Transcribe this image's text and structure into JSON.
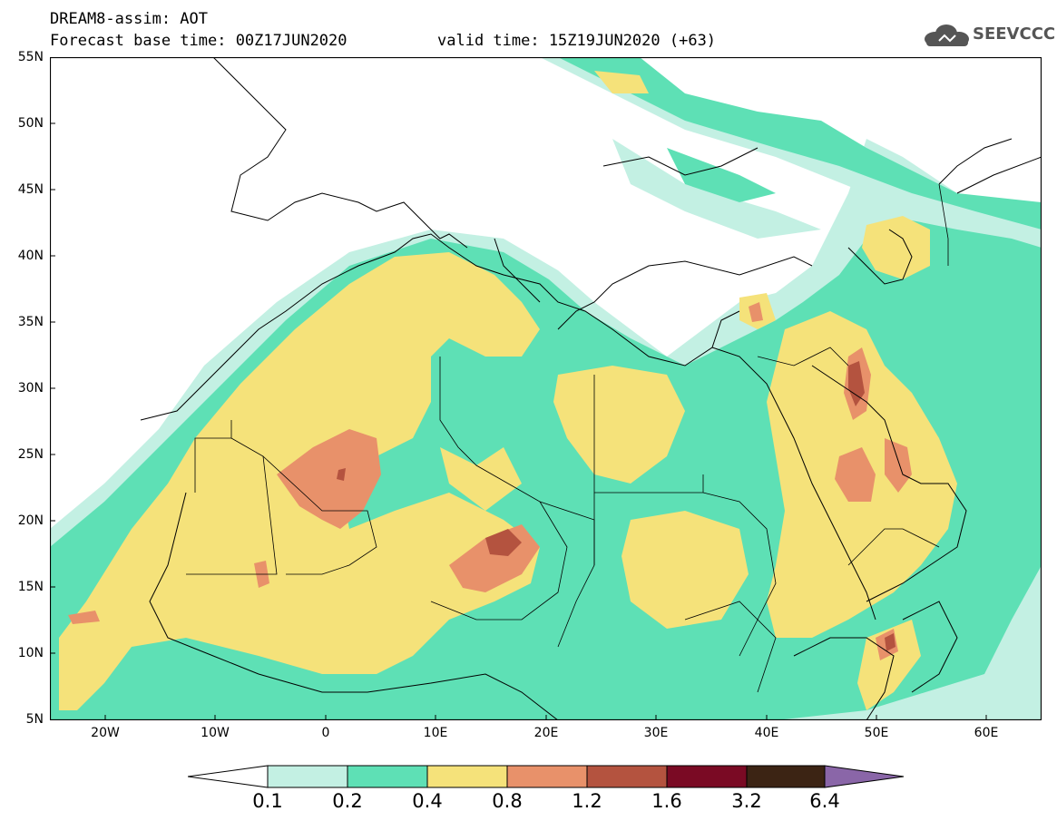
{
  "header": {
    "title": "DREAM8-assim: AOT",
    "base_time": "Forecast base time: 00Z17JUN2020",
    "valid_time": "valid time: 15Z19JUN2020 (+63)"
  },
  "logo": {
    "text": "SEEVCCC",
    "icon": "cloud-logo-icon"
  },
  "map": {
    "variable": "AOT",
    "lat_labels": [
      "55N",
      "50N",
      "45N",
      "40N",
      "35N",
      "30N",
      "25N",
      "20N",
      "15N",
      "10N",
      "5N"
    ],
    "lon_labels": [
      "20W",
      "10W",
      "0",
      "10E",
      "20E",
      "30E",
      "40E",
      "50E",
      "60E"
    ],
    "background": "#ffffff",
    "coastline_color": "#000000"
  },
  "colorbar": {
    "labels": [
      "0.1",
      "0.2",
      "0.4",
      "0.8",
      "1.2",
      "1.6",
      "3.2",
      "6.4"
    ],
    "colors": [
      "#ffffff",
      "#c3f0e3",
      "#5ee0b5",
      "#f5e27a",
      "#e8916a",
      "#b4533f",
      "#7a0a24",
      "#3c2414",
      "#8a66a8"
    ]
  }
}
